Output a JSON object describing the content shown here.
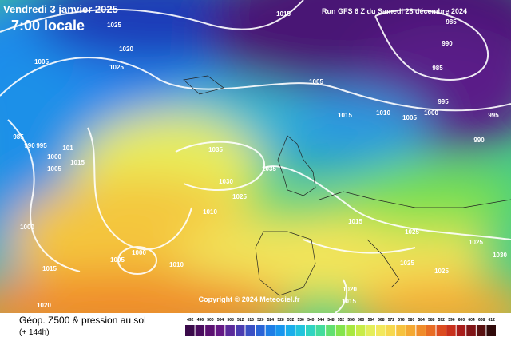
{
  "header": {
    "date": "Vendredi 3 janvier 2025",
    "time": "7:00 locale",
    "run": "Run GFS 6 Z du Samedi 28 décembre 2024"
  },
  "copyright": "Copyright © 2024 Meteociel.fr",
  "footer": {
    "title": "Géop. Z500 & pression au sol",
    "lead": "(+ 144h)"
  },
  "isobar_labels": [
    "1015",
    "1025",
    "1020",
    "1025",
    "1005",
    "985",
    "990",
    "985",
    "1005",
    "995",
    "995",
    "1015",
    "1010",
    "1005",
    "1000",
    "990",
    "985",
    "990",
    "995",
    "101",
    "1000",
    "1015",
    "1005",
    "1035",
    "1035",
    "1030",
    "1025",
    "1010",
    "1000",
    "1015",
    "1025",
    "1025",
    "1005",
    "1000",
    "1010",
    "1015",
    "1025",
    "1025",
    "1030",
    "1020",
    "1015",
    "1020"
  ],
  "color_scale": {
    "values": [
      492,
      496,
      500,
      504,
      508,
      512,
      516,
      520,
      524,
      528,
      532,
      536,
      540,
      544,
      548,
      552,
      556,
      560,
      564,
      568,
      572,
      576,
      580,
      584,
      588,
      592,
      596,
      600,
      604,
      608,
      612
    ],
    "colors": [
      "#3a0a4a",
      "#4a0c5e",
      "#5a1070",
      "#641884",
      "#5a2a9a",
      "#4a3cb0",
      "#3a50c4",
      "#2a64d6",
      "#1e7ee6",
      "#1896ee",
      "#1aaeea",
      "#22c4dc",
      "#30d4c0",
      "#44dc9c",
      "#62e070",
      "#84e44c",
      "#a8e840",
      "#c8ec48",
      "#e4ee5a",
      "#f2e85c",
      "#f6d84e",
      "#f6c23e",
      "#f4a832",
      "#f08c2a",
      "#e86c24",
      "#dc4c20",
      "#c8301c",
      "#a81c1a",
      "#801416",
      "#581010",
      "#300a0a"
    ]
  }
}
